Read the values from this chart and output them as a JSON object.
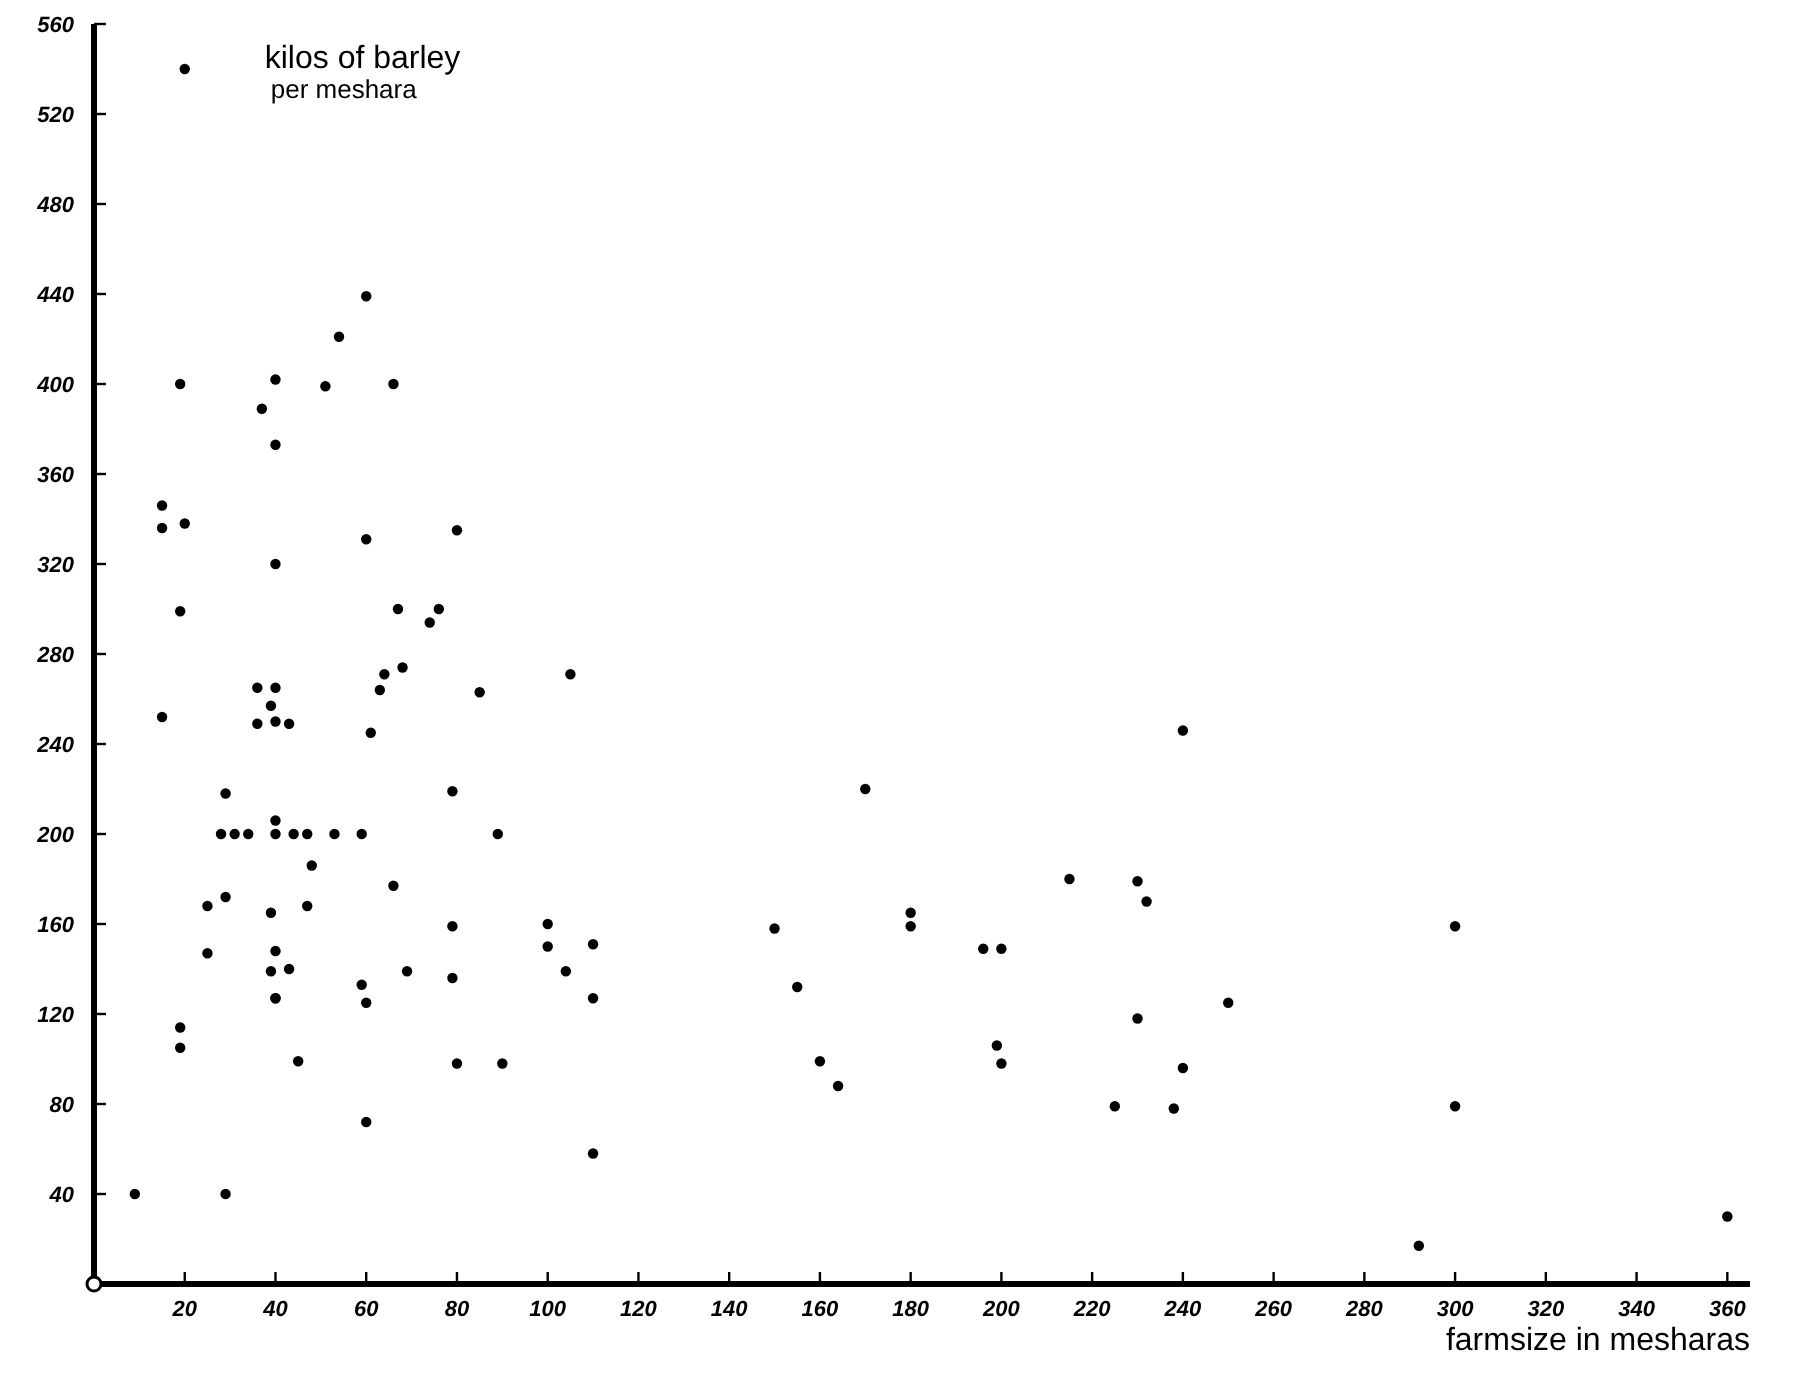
{
  "chart_data": {
    "type": "scatter",
    "xlabel": "farmsize in mesharas",
    "ylabel": "kilos of barley\nper meshara",
    "marker": "circle",
    "grid": false,
    "xlim": [
      0,
      365
    ],
    "ylim": [
      0,
      560
    ],
    "xticks": [
      20,
      40,
      60,
      80,
      100,
      120,
      140,
      160,
      180,
      200,
      220,
      240,
      260,
      280,
      300,
      320,
      340,
      360
    ],
    "yticks": [
      40,
      80,
      120,
      160,
      200,
      240,
      280,
      320,
      360,
      400,
      440,
      480,
      520,
      560
    ],
    "series": [
      {
        "color": "#000000",
        "x": [
          9,
          29,
          15,
          36,
          40,
          39,
          36,
          40,
          43,
          19,
          19,
          25,
          25,
          29,
          29,
          28,
          31,
          34,
          40,
          44,
          47,
          53,
          59,
          40,
          48,
          47,
          39,
          40,
          39,
          43,
          40,
          40,
          45,
          59,
          60,
          60,
          66,
          69,
          61,
          63,
          64,
          68,
          85,
          105,
          79,
          89,
          79,
          79,
          80,
          90,
          100,
          100,
          104,
          110,
          110,
          110,
          20,
          19,
          15,
          15,
          20,
          19,
          37,
          40,
          40,
          40,
          51,
          54,
          60,
          66,
          60,
          80,
          67,
          74,
          76,
          150,
          155,
          160,
          164,
          170,
          180,
          180,
          196,
          200,
          199,
          200,
          215,
          230,
          232,
          230,
          240,
          240,
          225,
          238,
          250,
          300,
          300,
          292,
          360
        ],
        "values": [
          40,
          40,
          252,
          265,
          265,
          257,
          249,
          250,
          249,
          114,
          105,
          168,
          147,
          218,
          172,
          200,
          200,
          200,
          200,
          200,
          200,
          200,
          200,
          206,
          186,
          168,
          165,
          148,
          139,
          140,
          127,
          127,
          99,
          133,
          125,
          72,
          177,
          139,
          245,
          264,
          271,
          274,
          263,
          271,
          219,
          200,
          159,
          136,
          98,
          98,
          160,
          150,
          139,
          151,
          127,
          58,
          540,
          400,
          346,
          336,
          338,
          299,
          389,
          402,
          373,
          320,
          399,
          421,
          439,
          400,
          331,
          335,
          300,
          294,
          300,
          158,
          132,
          99,
          88,
          220,
          165,
          159,
          149,
          149,
          106,
          98,
          180,
          179,
          170,
          118,
          246,
          96,
          79,
          78,
          125,
          159,
          79,
          17,
          30
        ]
      }
    ]
  }
}
